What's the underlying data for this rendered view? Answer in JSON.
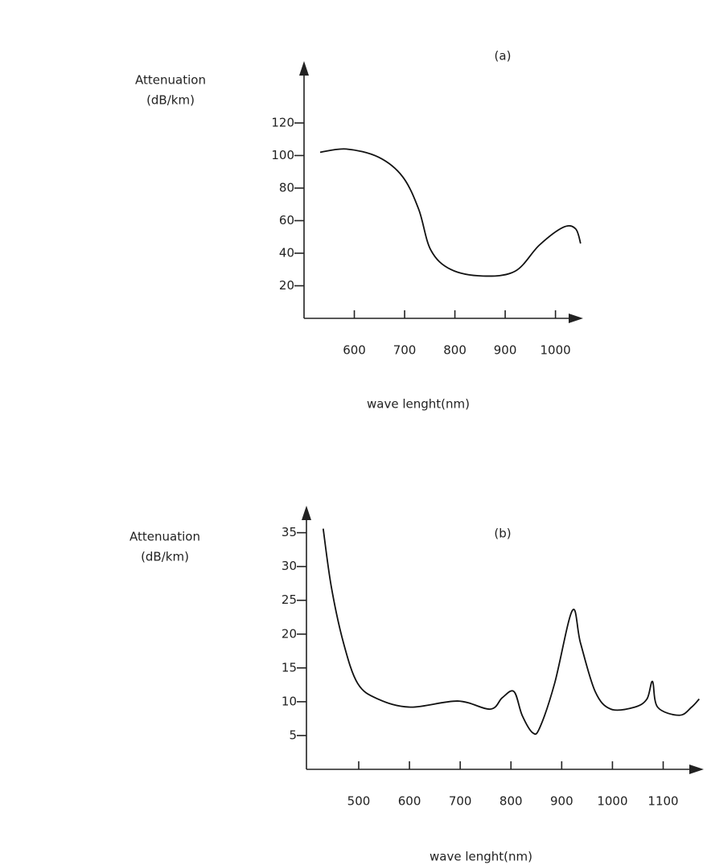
{
  "chart_data": [
    {
      "type": "line",
      "label": "(a)",
      "ylabel": [
        "Attenuation",
        "(dB/km)"
      ],
      "xlabel": "wave lenght(nm)",
      "x": [
        532,
        584,
        648,
        696,
        728,
        752,
        792,
        856,
        920,
        968,
        1016,
        1040,
        1050
      ],
      "series": [
        {
          "color": "#111111",
          "values": [
            102,
            104,
            99,
            87,
            67,
            42,
            30,
            26,
            29,
            45,
            56,
            55,
            46
          ]
        }
      ],
      "xlim": [
        500,
        1055
      ],
      "xticks": [
        600,
        700,
        800,
        900,
        1000
      ],
      "ylim": [
        0,
        158
      ],
      "yticks": [
        20,
        40,
        60,
        80,
        100,
        120
      ],
      "grid": false
    },
    {
      "type": "line",
      "label": "(b)",
      "ylabel": [
        "Attenuation",
        "(dB/km)"
      ],
      "xlabel": "wave lenght(nm)",
      "x": [
        430,
        446,
        470,
        498,
        538,
        602,
        695,
        759,
        783,
        806,
        822,
        843,
        857,
        886,
        921,
        937,
        966,
        997,
        1044,
        1068,
        1079,
        1089,
        1132,
        1156,
        1171
      ],
      "series": [
        {
          "color": "#111111",
          "values": [
            35.6,
            27,
            18.7,
            12.7,
            10.4,
            9.2,
            10.1,
            8.9,
            10.6,
            11.5,
            8,
            5.4,
            6.2,
            12.7,
            23.5,
            18.7,
            11.5,
            8.9,
            9.2,
            10.4,
            13,
            9.2,
            8,
            9.2,
            10.4
          ]
        }
      ],
      "xlim": [
        397,
        1180
      ],
      "xticks": [
        500,
        600,
        700,
        800,
        900,
        1000,
        1100
      ],
      "ylim": [
        0,
        39
      ],
      "yticks": [
        5,
        10,
        15,
        20,
        25,
        30,
        35
      ],
      "grid": false
    }
  ]
}
